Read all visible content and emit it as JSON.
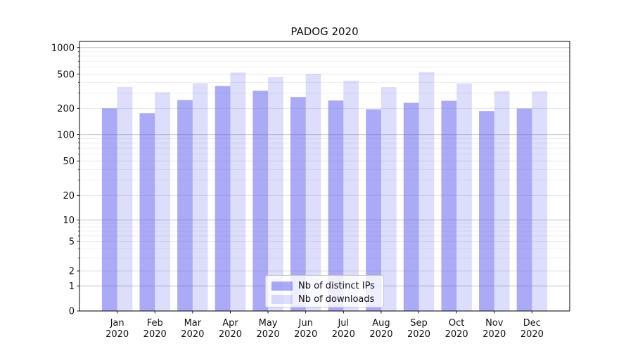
{
  "figure": {
    "background": "#ffffff"
  },
  "chart_data": {
    "type": "bar",
    "title": "PADOG 2020",
    "categories": [
      "Jan 2020",
      "Feb 2020",
      "Mar 2020",
      "Apr 2020",
      "May 2020",
      "Jun 2020",
      "Jul 2020",
      "Aug 2020",
      "Sep 2020",
      "Oct 2020",
      "Nov 2020",
      "Dec 2020"
    ],
    "series": [
      {
        "name": "Nb of distinct IPs",
        "color": "#5555ee",
        "alpha": 0.5,
        "values": [
          200,
          176,
          250,
          364,
          321,
          271,
          247,
          195,
          232,
          245,
          186,
          199
        ]
      },
      {
        "name": "Nb of downloads",
        "color": "#5555ee",
        "alpha": 0.2,
        "values": [
          355,
          308,
          392,
          522,
          461,
          504,
          420,
          353,
          529,
          391,
          316,
          315
        ]
      }
    ],
    "xlabel": "",
    "ylabel": "",
    "yscale": "symlog",
    "y_ticks": [
      0,
      1,
      2,
      5,
      10,
      20,
      50,
      100,
      200,
      500,
      1000
    ],
    "y_major_gridlines": [
      1,
      10,
      100,
      1000
    ],
    "y_minor_gridlines": [
      3,
      4,
      6,
      7,
      8,
      9,
      30,
      40,
      60,
      70,
      80,
      90,
      300,
      400,
      600,
      700,
      800,
      900
    ],
    "ylim": [
      0,
      1170
    ],
    "grid": true,
    "legend_position": "lower center",
    "axis_color": "#000000",
    "major_grid_color": "#c2c2c2",
    "minor_grid_color": "#ededed",
    "labeled_minor_grid_color": "#e2e2e2"
  }
}
